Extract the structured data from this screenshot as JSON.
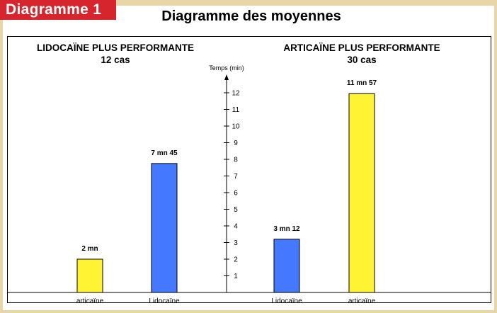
{
  "badge": "Diagramme 1",
  "title": "Diagramme des moyennes",
  "colors": {
    "blue": "#4479ff",
    "yellow": "#fff333",
    "badge": "#d7252d",
    "background": "#e8d6a8"
  },
  "chart_data": {
    "type": "bar",
    "title": "Diagramme des moyennes",
    "ylabel": "Temps (min)",
    "ylim": [
      0,
      12
    ],
    "yticks": [
      "1",
      "2",
      "3",
      "4",
      "5",
      "6",
      "7",
      "8",
      "9",
      "10",
      "11",
      "12"
    ],
    "grid": false,
    "groups": [
      {
        "heading": "LIDOCAÏNE PLUS PERFORMANTE",
        "subheading": "12 cas",
        "bars": [
          {
            "category": "articaïne",
            "value": 2.0,
            "label": "2 mn",
            "color": "#fff333"
          },
          {
            "category": "Lidocaïne",
            "value": 7.75,
            "label": "7 mn 45",
            "color": "#4479ff"
          }
        ]
      },
      {
        "heading": "ARTICAÏNE PLUS PERFORMANTE",
        "subheading": "30 cas",
        "bars": [
          {
            "category": "Lidocaïne",
            "value": 3.2,
            "label": "3 mn 12",
            "color": "#4479ff"
          },
          {
            "category": "articaïne",
            "value": 11.95,
            "label": "11 mn 57",
            "color": "#fff333"
          }
        ]
      }
    ]
  }
}
